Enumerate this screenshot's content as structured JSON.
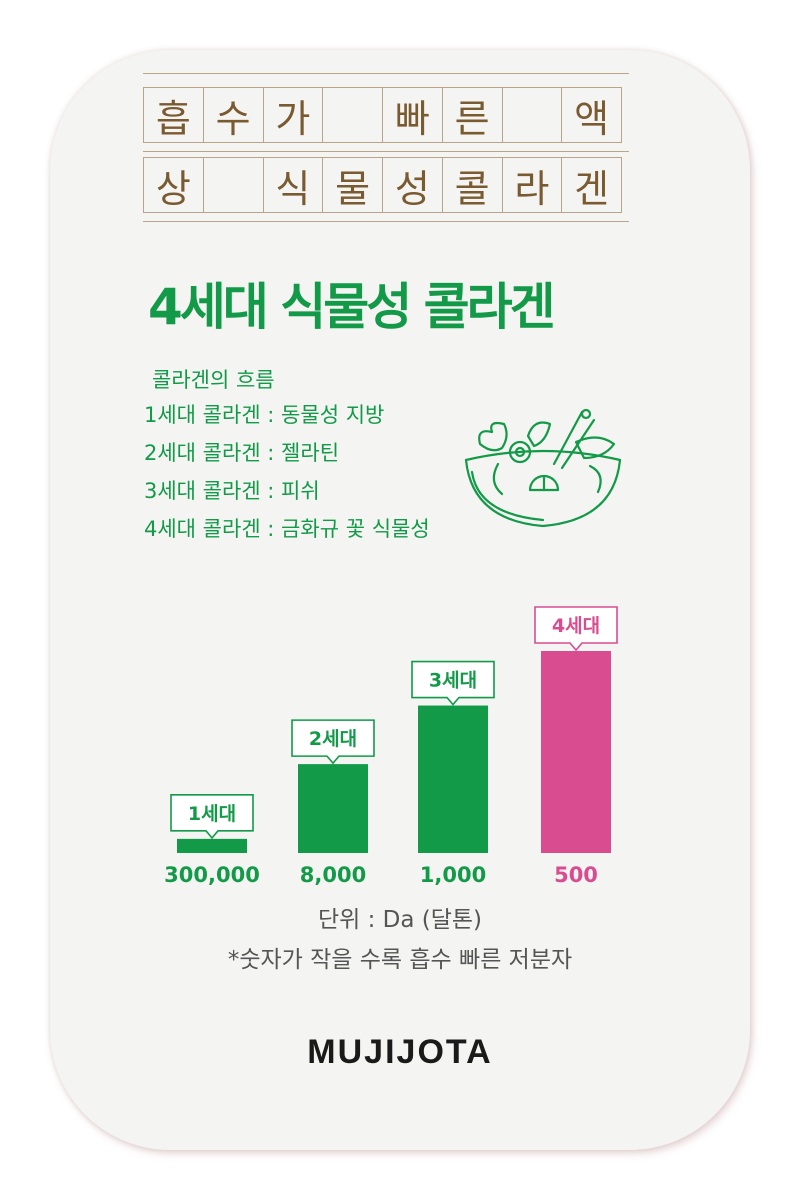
{
  "headline_cells": {
    "row1": [
      "흡",
      "수",
      "가",
      "",
      "빠",
      "른",
      "",
      "액"
    ],
    "row2": [
      "상",
      "",
      "식",
      "물",
      "성",
      "콜",
      "라",
      "겐"
    ]
  },
  "headline": "4세대 식물성 콜라겐",
  "flow": {
    "title": "콜라겐의 흐름",
    "items": [
      "1세대 콜라겐 : 동물성 지방",
      "2세대 콜라겐 : 젤라틴",
      "3세대 콜라겐 : 피쉬",
      "4세대 콜라겐 : 금화규 꽃 식물성"
    ]
  },
  "icons": {
    "salad": "salad-bowl-icon"
  },
  "colors": {
    "green": "#129a48",
    "pink": "#d94c90",
    "text_gray": "#555555",
    "brand_blue": "#4a9fd8"
  },
  "chart_data": {
    "type": "bar",
    "categories": [
      "1세대",
      "2세대",
      "3세대",
      "4세대"
    ],
    "value_labels": [
      "300,000",
      "8,000",
      "1,000",
      "500"
    ],
    "values": [
      300000,
      8000,
      1000,
      500
    ],
    "bar_heights_relative": [
      0.07,
      0.44,
      0.73,
      1.0
    ],
    "highlight_index": 3,
    "unit_text": "단위 : Da (달톤)",
    "note_text": "*숫자가 작을 수록 흡수 빠른 저분자"
  },
  "brand": "MUJIJOTA"
}
